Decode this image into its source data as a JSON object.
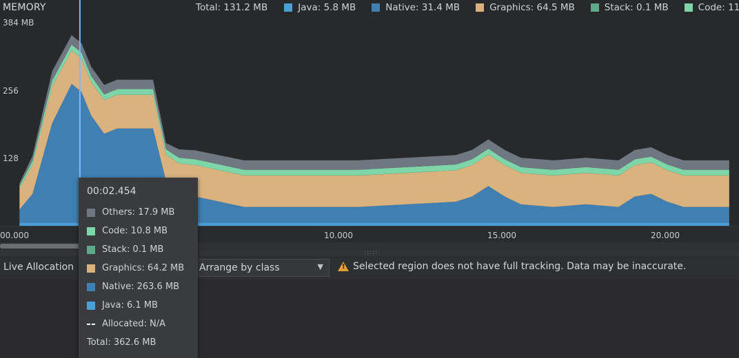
{
  "memory": {
    "title": "MEMORY",
    "y_labels": [
      "384 MB",
      "256",
      "128"
    ]
  },
  "legend": {
    "total": "Total: 131.2 MB",
    "items": [
      {
        "label": "Java: 5.8 MB",
        "color": "#4a9fd6"
      },
      {
        "label": "Native: 31.4 MB",
        "color": "#3f7fb2"
      },
      {
        "label": "Graphics: 64.5 MB",
        "color": "#d9b27e"
      },
      {
        "label": "Stack: 0.1 MB",
        "color": "#5fa98a"
      },
      {
        "label": "Code: 11",
        "color": "#7ed6a8"
      }
    ]
  },
  "timeline": {
    "ticks": [
      "00.000",
      "10.000",
      "15.000",
      "20.000"
    ]
  },
  "bottom_bar": {
    "live_allocation": "Live Allocation",
    "arrange_value": "Arrange by class",
    "warning": "Selected region does not have full tracking. Data may be inaccurate."
  },
  "tooltip": {
    "time": "00:02.454",
    "rows": [
      {
        "label": "Others: 17.9 MB",
        "color": "#6f7780"
      },
      {
        "label": "Code: 10.8 MB",
        "color": "#7ed6a8"
      },
      {
        "label": "Stack: 0.1 MB",
        "color": "#5fa98a"
      },
      {
        "label": "Graphics: 64.2 MB",
        "color": "#d9b27e"
      },
      {
        "label": "Native: 263.6 MB",
        "color": "#3f7fb2"
      },
      {
        "label": "Java: 6.1 MB",
        "color": "#4a9fd6"
      }
    ],
    "allocated": "Allocated: N/A",
    "total": "Total: 362.6 MB"
  },
  "chart_data": {
    "type": "area",
    "x_unit": "seconds",
    "x": [
      0.6,
      1.0,
      1.6,
      2.2,
      2.5,
      2.8,
      3.2,
      3.6,
      4.0,
      4.3,
      4.7,
      5.1,
      5.5,
      6.0,
      7.5,
      9.0,
      11.0,
      12.5,
      14.0,
      14.5,
      15.0,
      15.5,
      16.0,
      17.0,
      18.0,
      19.0,
      19.5,
      20.0,
      20.5,
      21.0,
      22.0,
      22.4
    ],
    "series": [
      {
        "name": "Java",
        "color": "#4a9fd6",
        "values": [
          6,
          6,
          6,
          6,
          6,
          6,
          6,
          6,
          6,
          6,
          6,
          6,
          6,
          6,
          6,
          6,
          6,
          6,
          6,
          6,
          6,
          6,
          6,
          6,
          6,
          6,
          6,
          6,
          6,
          6,
          6,
          6
        ]
      },
      {
        "name": "Native",
        "color": "#3f7fb2",
        "values": [
          25,
          55,
          190,
          265,
          250,
          205,
          170,
          180,
          180,
          180,
          180,
          80,
          55,
          50,
          30,
          30,
          30,
          35,
          40,
          50,
          70,
          50,
          35,
          30,
          35,
          30,
          50,
          55,
          40,
          30,
          30,
          30
        ]
      },
      {
        "name": "Graphics",
        "color": "#d9b27e",
        "values": [
          40,
          55,
          70,
          64,
          64,
          64,
          64,
          64,
          64,
          64,
          64,
          50,
          58,
          60,
          60,
          60,
          60,
          60,
          60,
          60,
          60,
          60,
          60,
          60,
          60,
          60,
          60,
          60,
          60,
          60,
          60,
          60
        ]
      },
      {
        "name": "Stack",
        "color": "#5fa98a",
        "values": [
          0.1,
          0.1,
          0.1,
          0.1,
          0.1,
          0.1,
          0.1,
          0.1,
          0.1,
          0.1,
          0.1,
          0.1,
          0.1,
          0.1,
          0.1,
          0.1,
          0.1,
          0.1,
          0.1,
          0.1,
          0.1,
          0.1,
          0.1,
          0.1,
          0.1,
          0.1,
          0.1,
          0.1,
          0.1,
          0.1,
          0.1,
          0.1
        ]
      },
      {
        "name": "Code",
        "color": "#7ed6a8",
        "values": [
          5,
          8,
          11,
          11,
          11,
          11,
          11,
          11,
          11,
          11,
          11,
          10,
          11,
          11,
          11,
          11,
          11,
          11,
          11,
          11,
          11,
          11,
          11,
          11,
          11,
          11,
          11,
          11,
          11,
          11,
          11,
          11
        ]
      },
      {
        "name": "Others",
        "color": "#6f7780",
        "values": [
          5,
          10,
          18,
          18,
          18,
          18,
          18,
          18,
          18,
          18,
          18,
          12,
          16,
          17,
          18,
          18,
          18,
          18,
          18,
          18,
          18,
          18,
          18,
          18,
          18,
          18,
          18,
          18,
          18,
          18,
          18,
          18
        ]
      }
    ],
    "ylim": [
      0,
      384
    ],
    "xlim": [
      0,
      22.7
    ],
    "selected_x": 2.454
  }
}
